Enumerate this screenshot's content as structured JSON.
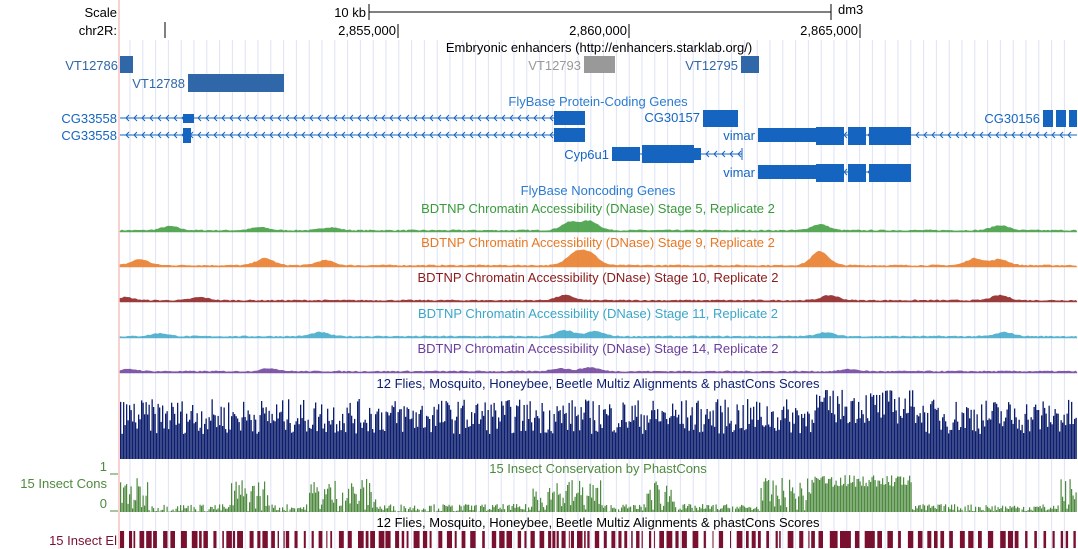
{
  "header": {
    "scale_label": "Scale",
    "scale_value": "10 kb",
    "assembly": "dm3",
    "chrom_label": "chr2R:",
    "ticks": [
      "2,855,000",
      "2,860,000",
      "2,865,000"
    ]
  },
  "enhancer_track": {
    "title": "Embryonic enhancers (http://enhancers.starklab.org/)",
    "features": [
      "VT12786",
      "VT12788",
      "VT12793",
      "VT12795"
    ]
  },
  "protein_coding_track": {
    "title": "FlyBase Protein-Coding Genes",
    "genes": [
      "CG33558",
      "CG33558",
      "CG30157",
      "vimar",
      "CG30156",
      "Cyp6u1",
      "vimar"
    ]
  },
  "noncoding_track": {
    "title": "FlyBase Noncoding Genes"
  },
  "dnase_tracks": [
    {
      "title": "BDTNP Chromatin Accessibility (DNase) Stage 5, Replicate 2",
      "color": "#3a9a3a"
    },
    {
      "title": "BDTNP Chromatin Accessibility (DNase) Stage 9, Replicate 2",
      "color": "#e87722"
    },
    {
      "title": "BDTNP Chromatin Accessibility (DNase) Stage 10, Replicate 2",
      "color": "#8b1a1a"
    },
    {
      "title": "BDTNP Chromatin Accessibility (DNase) Stage 11, Replicate 2",
      "color": "#3aa6c8"
    },
    {
      "title": "BDTNP Chromatin Accessibility (DNase) Stage 14, Replicate 2",
      "color": "#6a3d9a"
    }
  ],
  "multiz_track": {
    "title": "12 Flies, Mosquito, Honeybee, Beetle Multiz Alignments & phastCons Scores",
    "color": "#0c1e6e"
  },
  "cons_track": {
    "side_label": "15 Insect Cons",
    "title": "15 Insect Conservation by PhastCons",
    "y_max": "1",
    "y_min": "0",
    "color": "#4e8a3e"
  },
  "el_track": {
    "side_label": "15 Insect El",
    "title": "12 Flies, Mosquito, Honeybee, Beetle Multiz Alignments & phastCons Scores",
    "color": "#7a1030"
  },
  "colors": {
    "gene_blue": "#1565c0",
    "enhancer_blue": "#2f67a8",
    "enhancer_gray": "#999999",
    "title_blue": "#2b7bd0",
    "grid": "#cfd7f0",
    "red_line": "#f0a0a0"
  }
}
